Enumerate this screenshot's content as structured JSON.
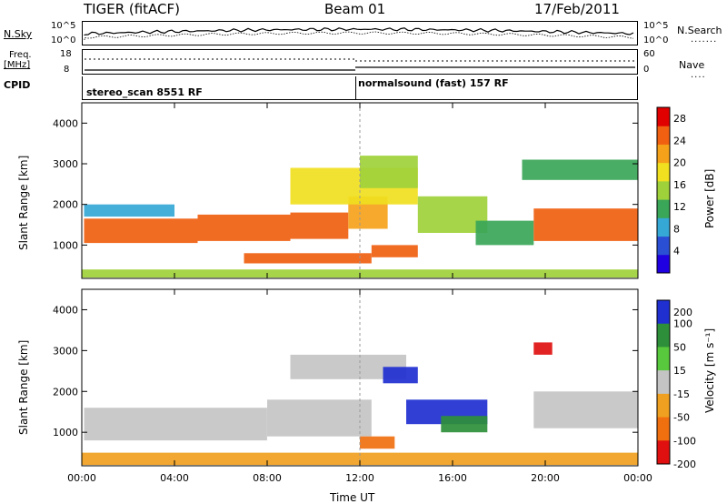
{
  "header": {
    "title": "TIGER (fitACF)",
    "beam": "Beam 01",
    "date": "17/Feb/2011"
  },
  "top_panels": {
    "nsky_label": "N.Sky",
    "nsky_ticks": [
      "10^5",
      "10^0"
    ],
    "nsearch_label": "N.Search",
    "nsearch_ticks": [
      "10^5",
      "10^0"
    ],
    "freq_label": "Freq.",
    "freq_unit": "[MHz]",
    "freq_ticks": [
      "18",
      "8"
    ],
    "nave_label": "Nave",
    "nave_ticks": [
      "60",
      "0"
    ],
    "cpid_label": "CPID",
    "cpid_segments": [
      "stereo_scan 8551 RF",
      "normalsound (fast) 157 RF"
    ]
  },
  "chart_data": [
    {
      "type": "heatmap",
      "name": "power",
      "ylabel": "Slant Range [km]",
      "xlabel": "Time UT",
      "x_ticks": [
        "00:00",
        "04:00",
        "08:00",
        "12:00",
        "16:00",
        "20:00",
        "00:00"
      ],
      "x_range_hours": [
        0,
        24
      ],
      "y_ticks": [
        1000,
        2000,
        3000,
        4000
      ],
      "ylim": [
        180,
        4500
      ],
      "colorbar_label": "Power [dB]",
      "colorbar_ticks": [
        4,
        8,
        12,
        16,
        20,
        24,
        28
      ],
      "colorbar_range": [
        0,
        30
      ],
      "regions": [
        {
          "t": [
            0.1,
            5.0
          ],
          "r": [
            1050,
            1650
          ],
          "v": 24
        },
        {
          "t": [
            5.0,
            9.0
          ],
          "r": [
            1100,
            1750
          ],
          "v": 25
        },
        {
          "t": [
            9.0,
            11.5
          ],
          "r": [
            1150,
            1800
          ],
          "v": 26
        },
        {
          "t": [
            11.5,
            13.2
          ],
          "r": [
            1400,
            2200
          ],
          "v": 22
        },
        {
          "t": [
            7.0,
            12.5
          ],
          "r": [
            550,
            800
          ],
          "v": 25
        },
        {
          "t": [
            12.5,
            14.5
          ],
          "r": [
            700,
            1000
          ],
          "v": 26
        },
        {
          "t": [
            9.0,
            14.5
          ],
          "r": [
            2000,
            2900
          ],
          "v": 18
        },
        {
          "t": [
            12.0,
            14.5
          ],
          "r": [
            2400,
            3200
          ],
          "v": 14
        },
        {
          "t": [
            14.5,
            17.5
          ],
          "r": [
            1300,
            2200
          ],
          "v": 14
        },
        {
          "t": [
            17.0,
            19.5
          ],
          "r": [
            1000,
            1600
          ],
          "v": 10
        },
        {
          "t": [
            19.5,
            24.0
          ],
          "r": [
            1100,
            1900
          ],
          "v": 26
        },
        {
          "t": [
            19.0,
            24.0
          ],
          "r": [
            2600,
            3100
          ],
          "v": 10
        },
        {
          "t": [
            0.1,
            4.0
          ],
          "r": [
            1700,
            2000
          ],
          "v": 7
        },
        {
          "t": [
            0.0,
            24.0
          ],
          "r": [
            200,
            400
          ],
          "v": 14
        }
      ]
    },
    {
      "type": "heatmap",
      "name": "velocity",
      "ylabel": "Slant Range [km]",
      "xlabel": "Time UT",
      "x_ticks": [
        "00:00",
        "04:00",
        "08:00",
        "12:00",
        "16:00",
        "20:00",
        "00:00"
      ],
      "x_range_hours": [
        0,
        24
      ],
      "y_ticks": [
        1000,
        2000,
        3000,
        4000
      ],
      "ylim": [
        180,
        4500
      ],
      "colorbar_label": "Velocity [m s⁻¹]",
      "colorbar_ticks": [
        200,
        100,
        50,
        15,
        -15,
        -50,
        -100,
        -200
      ],
      "regions": [
        {
          "t": [
            0.1,
            8.0
          ],
          "r": [
            800,
            1600
          ],
          "v": 0
        },
        {
          "t": [
            8.0,
            12.5
          ],
          "r": [
            900,
            1800
          ],
          "v": 0
        },
        {
          "t": [
            9.0,
            14.0
          ],
          "r": [
            2300,
            2900
          ],
          "v": 0
        },
        {
          "t": [
            12.0,
            13.5
          ],
          "r": [
            600,
            900
          ],
          "v": -60
        },
        {
          "t": [
            14.0,
            17.5
          ],
          "r": [
            1200,
            1800
          ],
          "v": 200
        },
        {
          "t": [
            15.5,
            17.5
          ],
          "r": [
            1000,
            1400
          ],
          "v": 60
        },
        {
          "t": [
            13.0,
            14.5
          ],
          "r": [
            2200,
            2600
          ],
          "v": 200
        },
        {
          "t": [
            19.5,
            24.0
          ],
          "r": [
            1100,
            2000
          ],
          "v": 0
        },
        {
          "t": [
            19.5,
            20.3
          ],
          "r": [
            2900,
            3200
          ],
          "v": -200
        },
        {
          "t": [
            0.0,
            24.0
          ],
          "r": [
            200,
            500
          ],
          "v": -40
        }
      ]
    }
  ],
  "colors": {
    "power_scale": [
      "#1f00e0",
      "#2b4fd4",
      "#36a8d6",
      "#3aa658",
      "#9fd13a",
      "#f0e020",
      "#f5a21a",
      "#f06010",
      "#e00000"
    ],
    "velocity_positive": [
      "#1f2fd0",
      "#2e8f3a",
      "#58c83c"
    ],
    "velocity_ground": "#c4c4c4",
    "velocity_negative": [
      "#f0a020",
      "#f07010",
      "#e01010"
    ]
  }
}
